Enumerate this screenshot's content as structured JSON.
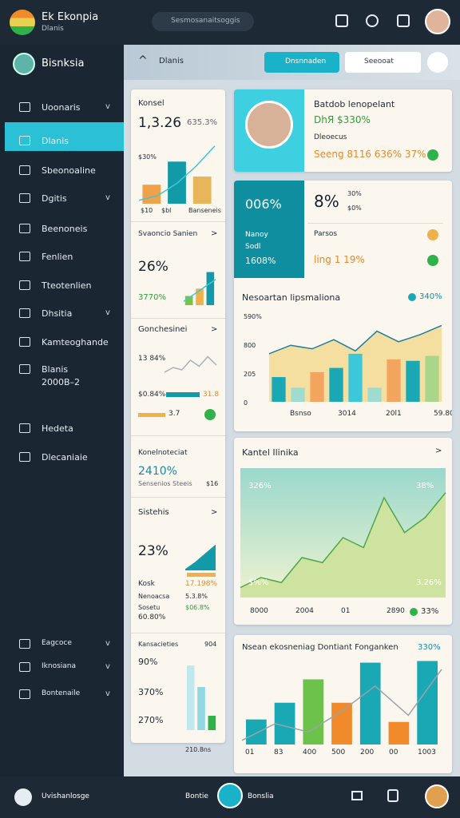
{
  "header": {
    "title": "Ek Ekonpia",
    "subtitle": "Dlanis",
    "search": "Sesmosanaitsoggis"
  },
  "sidebar": {
    "user": "Bisnksia",
    "items": [
      "Uoonaris",
      "Dlanis",
      "Sbeonoaline",
      "Dgitis",
      "Beenoneis",
      "Fenlien",
      "Tteotenlien",
      "Dhsitia",
      "Kamteoghande",
      "Blanis",
      "2000B–2"
    ],
    "bottom_items": [
      "Eagcoce",
      "Iknosiana",
      "Bontenaile",
      "Hedeta",
      "Dlecaniaie"
    ]
  },
  "toolbar": {
    "title": "Dlanis",
    "button": "Dnsnnaden",
    "search": "Seeooat"
  },
  "left": {
    "c1": {
      "title": "Konsel",
      "value": "1,3.26",
      "delta": "635.3%",
      "small": "$30%",
      "x": [
        "$10",
        "$bl",
        "Banseneis"
      ]
    },
    "c2": {
      "title": "Svaoncio Sanien",
      "value": "26%",
      "sub": "3770%"
    },
    "c3": {
      "title": "Gonchesinei",
      "value": "13 84%",
      "a": "$0.84%",
      "b": "31.8",
      "c": "3.7"
    },
    "c4": {
      "title": "Konelnoteciat",
      "value": "2410%",
      "sub": "Sensenios Steeis",
      "side": "$16"
    },
    "c5": {
      "title": "Sistehis",
      "value": "23%",
      "rows": [
        [
          "Kosk",
          "17.198%"
        ],
        [
          "Nenoacsa",
          "5.3.8%"
        ],
        [
          "Sosetu",
          "60.80%"
        ]
      ],
      "extra": "$06.8%"
    },
    "c6": {
      "title": "Kansacieties",
      "side": "904",
      "rows": [
        "90%",
        "370%",
        "270%"
      ],
      "foot": "210.8ns"
    }
  },
  "right": {
    "r1": {
      "name": "Batdob lenopelant",
      "line": "DhЯ $330%",
      "sub": "Dleoecus",
      "stats": "Seeng 8116 636% 37%"
    },
    "r2": {
      "big": "006%",
      "label": "Nanoy",
      "sub": "Sodl",
      "val": "1608%",
      "pct": "8%",
      "a": "30%",
      "b": "$0%",
      "p1": "Parsos",
      "p2": "ling 1 19%",
      "title": "Nesoartan lipsmaliona",
      "legend": "340%",
      "yl": [
        "590%",
        "800",
        "205",
        "0"
      ],
      "xl": [
        "Bsnso",
        "3014",
        "20l1",
        "59.80"
      ]
    },
    "r3": {
      "title": "Kantel Ilinika",
      "tl": "326%",
      "tr": "38%",
      "bl": "$%%",
      "br": "3.26%",
      "xl": [
        "8000",
        "2004",
        "01",
        "2890"
      ],
      "legend": "33%"
    },
    "r4": {
      "title": "Nsean ekosneniag Dontiant Fonganken",
      "legend": "330%",
      "xl": [
        "01",
        "83",
        "400",
        "500",
        "200",
        "00",
        "1003"
      ]
    }
  },
  "footer": {
    "left": "Uvishanlosge",
    "mid1": "Bontie",
    "mid2": "Bonslia"
  },
  "charts": {
    "c1": {
      "max": 100,
      "bars": [
        28,
        62,
        40
      ],
      "colors": [
        "#f0a24a",
        "#139aa8",
        "#e9b55a"
      ],
      "line": [
        5,
        12,
        30,
        55,
        85
      ],
      "line_color": "#3fc7d6"
    },
    "c2": {
      "max": 100,
      "bars": [
        25,
        45,
        90
      ],
      "colors": [
        "#7cc04a",
        "#f0b04a",
        "#139aa8"
      ],
      "line": [
        10,
        30,
        50,
        70
      ],
      "line_color": "#3fc7d6"
    },
    "c3": {
      "max": 100,
      "line": [
        20,
        40,
        30,
        70,
        45,
        85,
        50
      ],
      "line_color": "#aab0b6"
    },
    "c5": {
      "max": 100,
      "area": [
        5,
        30,
        60,
        90
      ],
      "area_color": "#139aa8"
    },
    "c6": {
      "max": 100,
      "bars": [
        90,
        60,
        20
      ],
      "colors": [
        "#bfe9ef",
        "#8fd8e2",
        "#2fb24a"
      ]
    },
    "main": {
      "max": 130,
      "bars": [
        35,
        20,
        42,
        48,
        68,
        20,
        60,
        58,
        65
      ],
      "colors": [
        "#1aa8b4",
        "#9fdccf",
        "#f3a45f",
        "#1aa8b4",
        "#3cc8d8",
        "#9fdccf",
        "#f3a45f",
        "#1aa8b4",
        "#a9d68a"
      ],
      "line": [
        68,
        80,
        75,
        88,
        72,
        100,
        85,
        95,
        108
      ],
      "line_color": "#1f7ea0",
      "area_color": "#f5dfa0"
    },
    "area": {
      "max": 120,
      "line": [
        10,
        20,
        15,
        40,
        35,
        60,
        50,
        100,
        65,
        80,
        105
      ],
      "line_color": "#4ea64b",
      "area_color": "#cfe3a0"
    },
    "bottom": {
      "max": 110,
      "bars": [
        30,
        50,
        78,
        50,
        98,
        27,
        100
      ],
      "colors": [
        "#1aa8b4",
        "#1aa8b4",
        "#6cc24a",
        "#f08a2a",
        "#1aa8b4",
        "#f08a2a",
        "#1aa8b4"
      ],
      "line": [
        5,
        25,
        15,
        40,
        70,
        35,
        90
      ],
      "line_color": "#9aa3aa"
    }
  }
}
